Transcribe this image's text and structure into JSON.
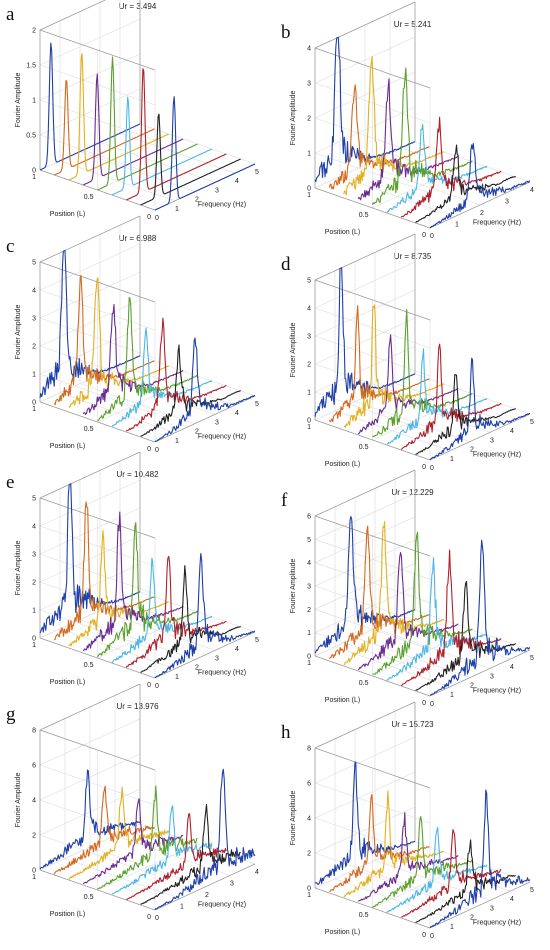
{
  "chart_data": [
    {
      "letter": "a",
      "type": "line",
      "title": "Ur = 3.494",
      "xlabel": "Frequency (Hz)",
      "ylabel": "Position (L)",
      "zlabel": "Fourier Amplitude",
      "zlim": [
        0,
        2
      ],
      "zticks": [
        "0",
        "0.5",
        "1",
        "1.5",
        "2"
      ],
      "xticks": [
        "0",
        "1",
        "2",
        "3",
        "4",
        "5"
      ],
      "yticks": [
        "0",
        "0.5",
        "1"
      ],
      "series": [
        {
          "peak_freq": 0.55,
          "amplitude": 1.75
        },
        {
          "peak_freq": 0.6,
          "amplitude": 1.3
        },
        {
          "peak_freq": 0.65,
          "amplitude": 1.75
        },
        {
          "peak_freq": 0.7,
          "amplitude": 1.5
        },
        {
          "peak_freq": 0.75,
          "amplitude": 1.8
        },
        {
          "peak_freq": 0.8,
          "amplitude": 1.3
        },
        {
          "peak_freq": 0.85,
          "amplitude": 1.8
        },
        {
          "peak_freq": 0.9,
          "amplitude": 1.2
        },
        {
          "peak_freq": 0.95,
          "amplitude": 1.5
        }
      ]
    },
    {
      "letter": "b",
      "type": "line",
      "title": "Ur = 5.241",
      "xlabel": "Frequency (Hz)",
      "ylabel": "Position (L)",
      "zlabel": "Fourier Amplitude",
      "zlim": [
        0,
        4
      ],
      "zticks": [
        "0",
        "1",
        "2",
        "3",
        "4"
      ],
      "xticks": [
        "0",
        "1",
        "2",
        "3",
        "4"
      ],
      "yticks": [
        "0",
        "0.5",
        "1"
      ],
      "series": [
        {
          "peak_freq": 0.9,
          "amplitude": 3.6
        },
        {
          "peak_freq": 1.0,
          "amplitude": 2.2
        },
        {
          "peak_freq": 1.1,
          "amplitude": 2.9
        },
        {
          "peak_freq": 1.2,
          "amplitude": 2.4
        },
        {
          "peak_freq": 1.3,
          "amplitude": 2.9
        },
        {
          "peak_freq": 1.4,
          "amplitude": 1.6
        },
        {
          "peak_freq": 1.5,
          "amplitude": 1.8
        },
        {
          "peak_freq": 1.6,
          "amplitude": 1.3
        },
        {
          "peak_freq": 1.7,
          "amplitude": 1.6
        }
      ]
    },
    {
      "letter": "c",
      "type": "line",
      "title": "Ur = 6.988",
      "xlabel": "Frequency (Hz)",
      "ylabel": "Position (L)",
      "zlabel": "Fourier Amplitude",
      "zlim": [
        0,
        5
      ],
      "zticks": [
        "0",
        "1",
        "2",
        "3",
        "4",
        "5"
      ],
      "xticks": [
        "0",
        "1",
        "2",
        "3",
        "4",
        "5"
      ],
      "yticks": [
        "0",
        "0.5",
        "1"
      ],
      "series": [
        {
          "peak_freq": 1.2,
          "amplitude": 5.0
        },
        {
          "peak_freq": 1.3,
          "amplitude": 3.4
        },
        {
          "peak_freq": 1.4,
          "amplitude": 3.8
        },
        {
          "peak_freq": 1.5,
          "amplitude": 3.0
        },
        {
          "peak_freq": 1.6,
          "amplitude": 3.2
        },
        {
          "peak_freq": 1.7,
          "amplitude": 2.2
        },
        {
          "peak_freq": 1.8,
          "amplitude": 2.6
        },
        {
          "peak_freq": 1.9,
          "amplitude": 2.0
        },
        {
          "peak_freq": 2.0,
          "amplitude": 2.5
        }
      ]
    },
    {
      "letter": "d",
      "type": "line",
      "title": "Ur = 8.735",
      "xlabel": "Frequency (Hz)",
      "ylabel": "Position (L)",
      "zlabel": "Fourier Amplitude",
      "zlim": [
        0,
        5
      ],
      "zticks": [
        "0",
        "1",
        "2",
        "3",
        "4",
        "5"
      ],
      "xticks": [
        "0",
        "1",
        "2",
        "3",
        "4",
        "5"
      ],
      "yticks": [
        "0",
        "0.5",
        "1"
      ],
      "series": [
        {
          "peak_freq": 1.3,
          "amplitude": 4.8
        },
        {
          "peak_freq": 1.4,
          "amplitude": 3.0
        },
        {
          "peak_freq": 1.5,
          "amplitude": 3.5
        },
        {
          "peak_freq": 1.6,
          "amplitude": 2.6
        },
        {
          "peak_freq": 1.7,
          "amplitude": 3.2
        },
        {
          "peak_freq": 1.8,
          "amplitude": 2.2
        },
        {
          "peak_freq": 1.9,
          "amplitude": 2.6
        },
        {
          "peak_freq": 2.0,
          "amplitude": 2.0
        },
        {
          "peak_freq": 2.1,
          "amplitude": 2.4
        }
      ]
    },
    {
      "letter": "e",
      "type": "line",
      "title": "Ur = 10.482",
      "xlabel": "Frequency (Hz)",
      "ylabel": "Position (L)",
      "zlabel": "Fourier Amplitude",
      "zlim": [
        0,
        5
      ],
      "zticks": [
        "0",
        "1",
        "2",
        "3",
        "4",
        "5"
      ],
      "xticks": [
        "0",
        "1",
        "2",
        "3",
        "4",
        "5"
      ],
      "yticks": [
        "0",
        "0.5",
        "1"
      ],
      "series": [
        {
          "peak_freq": 1.5,
          "amplitude": 4.8
        },
        {
          "peak_freq": 1.6,
          "amplitude": 3.8
        },
        {
          "peak_freq": 1.7,
          "amplitude": 3.0
        },
        {
          "peak_freq": 1.8,
          "amplitude": 3.5
        },
        {
          "peak_freq": 1.9,
          "amplitude": 3.6
        },
        {
          "peak_freq": 2.0,
          "amplitude": 2.5
        },
        {
          "peak_freq": 2.1,
          "amplitude": 3.0
        },
        {
          "peak_freq": 2.2,
          "amplitude": 2.4
        },
        {
          "peak_freq": 2.3,
          "amplitude": 3.0
        }
      ]
    },
    {
      "letter": "f",
      "type": "line",
      "title": "Ur = 12.229",
      "xlabel": "Frequency (Hz)",
      "ylabel": "Position (L)",
      "zlabel": "Fourier Amplitude",
      "zlim": [
        0,
        6
      ],
      "zticks": [
        "0",
        "1",
        "2",
        "3",
        "4",
        "5",
        "6"
      ],
      "xticks": [
        "0",
        "1",
        "2",
        "3",
        "4",
        "5"
      ],
      "yticks": [
        "0",
        "0.5",
        "1"
      ],
      "series": [
        {
          "peak_freq": 1.8,
          "amplitude": 4.5
        },
        {
          "peak_freq": 1.9,
          "amplitude": 4.0
        },
        {
          "peak_freq": 2.0,
          "amplitude": 4.4
        },
        {
          "peak_freq": 2.1,
          "amplitude": 3.6
        },
        {
          "peak_freq": 2.2,
          "amplitude": 4.2
        },
        {
          "peak_freq": 2.3,
          "amplitude": 3.4
        },
        {
          "peak_freq": 2.4,
          "amplitude": 3.8
        },
        {
          "peak_freq": 2.5,
          "amplitude": 3.0
        },
        {
          "peak_freq": 2.6,
          "amplitude": 4.6
        }
      ]
    },
    {
      "letter": "g",
      "type": "line",
      "title": "Ur = 13.976",
      "xlabel": "Frequency (Hz)",
      "ylabel": "Position (L)",
      "zlabel": "Fourier Amplitude",
      "zlim": [
        0,
        8
      ],
      "zticks": [
        "0",
        "2",
        "4",
        "6",
        "8"
      ],
      "xticks": [
        "0",
        "1",
        "2",
        "3",
        "4"
      ],
      "yticks": [
        "0",
        "0.5",
        "1"
      ],
      "series": [
        {
          "peak_freq": 1.9,
          "amplitude": 3.6
        },
        {
          "peak_freq": 2.0,
          "amplitude": 3.2
        },
        {
          "peak_freq": 2.1,
          "amplitude": 3.0
        },
        {
          "peak_freq": 2.2,
          "amplitude": 2.8
        },
        {
          "peak_freq": 2.3,
          "amplitude": 3.4
        },
        {
          "peak_freq": 2.4,
          "amplitude": 3.0
        },
        {
          "peak_freq": 2.5,
          "amplitude": 2.6
        },
        {
          "peak_freq": 2.6,
          "amplitude": 3.2
        },
        {
          "peak_freq": 2.7,
          "amplitude": 5.4
        }
      ]
    },
    {
      "letter": "h",
      "type": "line",
      "title": "Ur = 15.723",
      "xlabel": "Frequency (Hz)",
      "ylabel": "Position (L)",
      "zlabel": "Fourier Amplitude",
      "zlim": [
        0,
        8
      ],
      "zticks": [
        "0",
        "2",
        "4",
        "6",
        "8"
      ],
      "xticks": [
        "0",
        "1",
        "2",
        "3",
        "4",
        "5"
      ],
      "yticks": [
        "0",
        "0.5",
        "1"
      ],
      "series": [
        {
          "peak_freq": 2.0,
          "amplitude": 4.9
        },
        {
          "peak_freq": 2.1,
          "amplitude": 3.5
        },
        {
          "peak_freq": 2.2,
          "amplitude": 3.8
        },
        {
          "peak_freq": 2.3,
          "amplitude": 3.0
        },
        {
          "peak_freq": 2.4,
          "amplitude": 3.3
        },
        {
          "peak_freq": 2.5,
          "amplitude": 2.8
        },
        {
          "peak_freq": 2.6,
          "amplitude": 3.0
        },
        {
          "peak_freq": 2.7,
          "amplitude": 2.6
        },
        {
          "peak_freq": 2.8,
          "amplitude": 5.1
        }
      ]
    }
  ],
  "series_colors": [
    "#1f3fa8",
    "#d2691e",
    "#e3b020",
    "#6a2c91",
    "#5aa02c",
    "#4cb7e6",
    "#b0202a",
    "#222222",
    "#1f3fa8"
  ]
}
